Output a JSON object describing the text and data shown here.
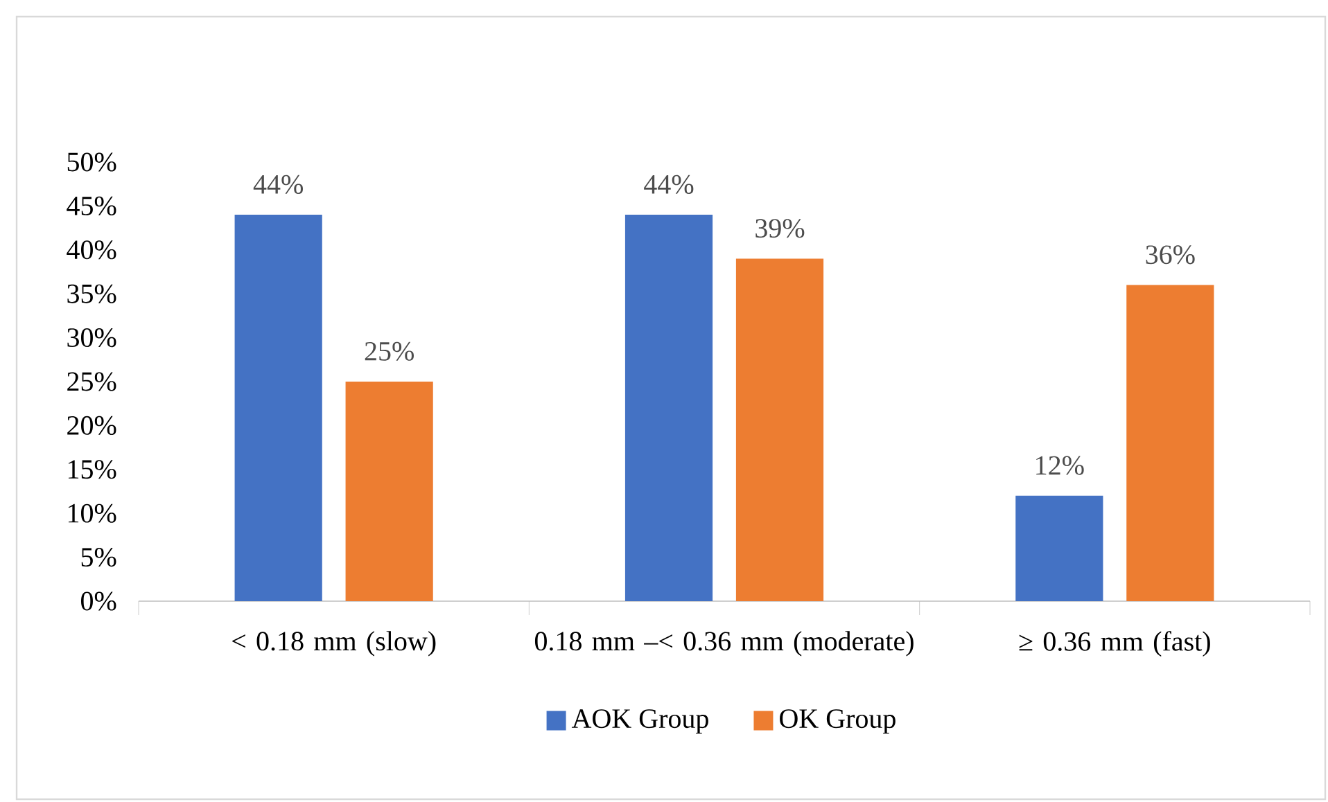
{
  "chart_data": {
    "type": "bar",
    "categories": [
      "< 0.18 mm (slow)",
      "0.18 mm –< 0.36 mm (moderate)",
      "≥ 0.36 mm (fast)"
    ],
    "series": [
      {
        "name": "AOK Group",
        "color": "#4472c4",
        "values": [
          44,
          44,
          12
        ],
        "value_labels": [
          "44%",
          "44%",
          "12%"
        ]
      },
      {
        "name": "OK Group",
        "color": "#ed7d31",
        "values": [
          25,
          39,
          36
        ],
        "value_labels": [
          "25%",
          "39%",
          "36%"
        ]
      }
    ],
    "ylim": [
      0,
      50
    ],
    "yticks": [
      {
        "value": 0,
        "label": "0%"
      },
      {
        "value": 5,
        "label": "5%"
      },
      {
        "value": 10,
        "label": "10%"
      },
      {
        "value": 15,
        "label": "15%"
      },
      {
        "value": 20,
        "label": "20%"
      },
      {
        "value": 25,
        "label": "25%"
      },
      {
        "value": 30,
        "label": "30%"
      },
      {
        "value": 35,
        "label": "35%"
      },
      {
        "value": 40,
        "label": "40%"
      },
      {
        "value": 45,
        "label": "45%"
      },
      {
        "value": 50,
        "label": "50%"
      }
    ],
    "legend": "bottom"
  }
}
